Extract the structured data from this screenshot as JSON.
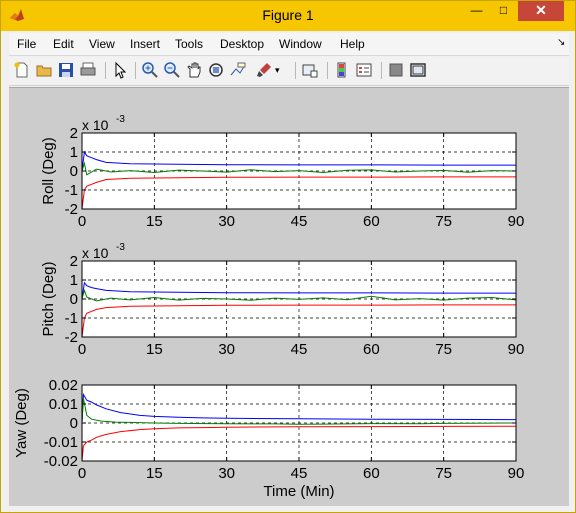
{
  "window": {
    "title": "Figure 1",
    "minimize_label": "—",
    "maximize_label": "□",
    "close_label": "✕"
  },
  "menu": [
    "File",
    "Edit",
    "View",
    "Insert",
    "Tools",
    "Desktop",
    "Window",
    "Help"
  ],
  "toolbar": [
    "new-figure-icon",
    "open-icon",
    "save-icon",
    "print-icon",
    "pointer-icon",
    "zoom-in-icon",
    "zoom-out-icon",
    "pan-icon",
    "rotate-icon",
    "data-cursor-icon",
    "brush-icon",
    "brush-dropdown-icon",
    "link-plot-icon",
    "colorbar-icon",
    "legend-icon",
    "hide-tools-icon",
    "show-tools-icon"
  ],
  "colors": {
    "blue": "#0000ff",
    "green": "#007f00",
    "red": "#ff0000",
    "titlebar": "#f6c700"
  },
  "chart_data": [
    {
      "type": "line",
      "ylabel": "Roll (Deg)",
      "multiplier": "x 10",
      "exponent": "-3",
      "xlim": [
        0,
        90
      ],
      "ylim": [
        -2,
        2
      ],
      "xticks": [
        "0",
        "15",
        "30",
        "45",
        "60",
        "75",
        "90"
      ],
      "yticks": [
        "2",
        "1",
        "0",
        "-1",
        "-2"
      ],
      "grid": true,
      "series": [
        {
          "color": "#0000ff",
          "x": [
            0,
            0.5,
            1,
            2,
            3,
            5,
            10,
            20,
            30,
            45,
            60,
            75,
            90
          ],
          "y": [
            0,
            1.0,
            0.8,
            0.7,
            0.6,
            0.45,
            0.38,
            0.35,
            0.33,
            0.32,
            0.32,
            0.31,
            0.31
          ]
        },
        {
          "color": "#007f00",
          "x": [
            0,
            0.5,
            1,
            3,
            6,
            10,
            15,
            20,
            25,
            30,
            35,
            40,
            45,
            50,
            55,
            60,
            65,
            70,
            75,
            80,
            85,
            90
          ],
          "y": [
            0,
            0.4,
            -0.2,
            0.1,
            -0.05,
            0.02,
            -0.08,
            0.05,
            0.0,
            -0.06,
            0.07,
            -0.03,
            0.02,
            -0.08,
            0.04,
            0.06,
            -0.05,
            0.0,
            0.03,
            -0.07,
            0.02,
            0.0
          ]
        },
        {
          "color": "#ff0000",
          "x": [
            0,
            0.5,
            1,
            2,
            3,
            5,
            10,
            20,
            30,
            45,
            60,
            75,
            90
          ],
          "y": [
            -2,
            -1.0,
            -0.8,
            -0.7,
            -0.6,
            -0.45,
            -0.38,
            -0.35,
            -0.33,
            -0.32,
            -0.32,
            -0.31,
            -0.31
          ]
        }
      ]
    },
    {
      "type": "line",
      "ylabel": "Pitch (Deg)",
      "multiplier": "x 10",
      "exponent": "-3",
      "xlim": [
        0,
        90
      ],
      "ylim": [
        -2,
        2
      ],
      "xticks": [
        "0",
        "15",
        "30",
        "45",
        "60",
        "75",
        "90"
      ],
      "yticks": [
        "2",
        "1",
        "0",
        "-1",
        "-2"
      ],
      "grid": true,
      "series": [
        {
          "color": "#0000ff",
          "x": [
            0,
            0.5,
            1,
            2,
            3,
            5,
            10,
            20,
            30,
            45,
            60,
            75,
            90
          ],
          "y": [
            0,
            0.85,
            0.7,
            0.6,
            0.55,
            0.45,
            0.38,
            0.35,
            0.33,
            0.32,
            0.32,
            0.31,
            0.31
          ]
        },
        {
          "color": "#007f00",
          "x": [
            0,
            0.5,
            1,
            3,
            6,
            10,
            15,
            20,
            25,
            30,
            35,
            40,
            45,
            50,
            55,
            60,
            65,
            70,
            75,
            80,
            85,
            90
          ],
          "y": [
            0,
            0.45,
            0.1,
            -0.1,
            0.05,
            -0.05,
            0.08,
            -0.06,
            0.03,
            0.0,
            -0.07,
            0.05,
            -0.02,
            0.06,
            -0.04,
            0.15,
            -0.05,
            0.02,
            -0.06,
            0.05,
            0.08,
            -0.05
          ]
        },
        {
          "color": "#ff0000",
          "x": [
            0,
            0.5,
            1,
            2,
            3,
            5,
            10,
            20,
            30,
            45,
            60,
            75,
            90
          ],
          "y": [
            -2,
            -1.0,
            -0.75,
            -0.65,
            -0.55,
            -0.45,
            -0.38,
            -0.35,
            -0.33,
            -0.32,
            -0.32,
            -0.31,
            -0.31
          ]
        }
      ]
    },
    {
      "type": "line",
      "ylabel": "Yaw (Deg)",
      "xlabel": "Time (Min)",
      "xlim": [
        0,
        90
      ],
      "ylim": [
        -0.02,
        0.02
      ],
      "xticks": [
        "0",
        "15",
        "30",
        "45",
        "60",
        "75",
        "90"
      ],
      "yticks": [
        "0.02",
        "0.01",
        "0",
        "-0.01",
        "-0.02"
      ],
      "grid": true,
      "series": [
        {
          "color": "#0000ff",
          "x": [
            0,
            0.3,
            1,
            2,
            3,
            5,
            8,
            12,
            15,
            20,
            25,
            30,
            45,
            60,
            75,
            90
          ],
          "y": [
            0,
            0.015,
            0.012,
            0.011,
            0.0095,
            0.0075,
            0.0055,
            0.004,
            0.0035,
            0.003,
            0.0027,
            0.0025,
            0.0022,
            0.002,
            0.0019,
            0.0018
          ]
        },
        {
          "color": "#007f00",
          "x": [
            0,
            0.3,
            1,
            2,
            4,
            7,
            10,
            15,
            20,
            30,
            40,
            45,
            50,
            60,
            70,
            75,
            80,
            90
          ],
          "y": [
            0,
            0.013,
            0.004,
            0.002,
            0.001,
            0.0005,
            0.0003,
            0.0,
            -0.0002,
            -0.0004,
            -0.0005,
            -0.0007,
            -0.0006,
            -0.0003,
            -0.0004,
            -0.0002,
            -0.0001,
            0.0
          ]
        },
        {
          "color": "#ff0000",
          "x": [
            0,
            0.3,
            1,
            2,
            3,
            5,
            8,
            12,
            15,
            20,
            25,
            30,
            45,
            60,
            75,
            90
          ],
          "y": [
            -0.02,
            -0.012,
            -0.01,
            -0.009,
            -0.0075,
            -0.006,
            -0.0045,
            -0.0035,
            -0.003,
            -0.0026,
            -0.0024,
            -0.0022,
            -0.002,
            -0.0019,
            -0.0018,
            -0.0017
          ]
        }
      ]
    }
  ]
}
